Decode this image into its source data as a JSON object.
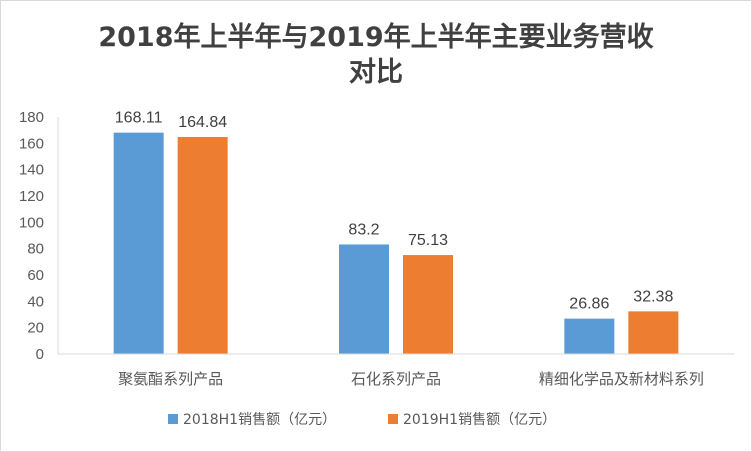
{
  "chart_data": {
    "type": "bar",
    "title_lines": [
      "2018年上半年与2019年上半年主要业务营收",
      "对比"
    ],
    "categories": [
      "聚氨酯系列产品",
      "石化系列产品",
      "精细化学品及新材料系列"
    ],
    "series": [
      {
        "name": "2018H1销售额（亿元）",
        "values": [
          168.11,
          83.2,
          26.86
        ],
        "labels": [
          "168.11",
          "83.2",
          "26.86"
        ],
        "color": "#5b9bd5"
      },
      {
        "name": "2019H1销售额（亿元）",
        "values": [
          164.84,
          75.13,
          32.38
        ],
        "labels": [
          "164.84",
          "75.13",
          "32.38"
        ],
        "color": "#ed7d31"
      }
    ],
    "ylim": [
      0,
      180
    ],
    "yticks": [
      "0",
      "20",
      "40",
      "60",
      "80",
      "100",
      "120",
      "140",
      "160",
      "180"
    ],
    "xlabel": "",
    "ylabel": "",
    "grid": false,
    "legend_position": "bottom"
  }
}
